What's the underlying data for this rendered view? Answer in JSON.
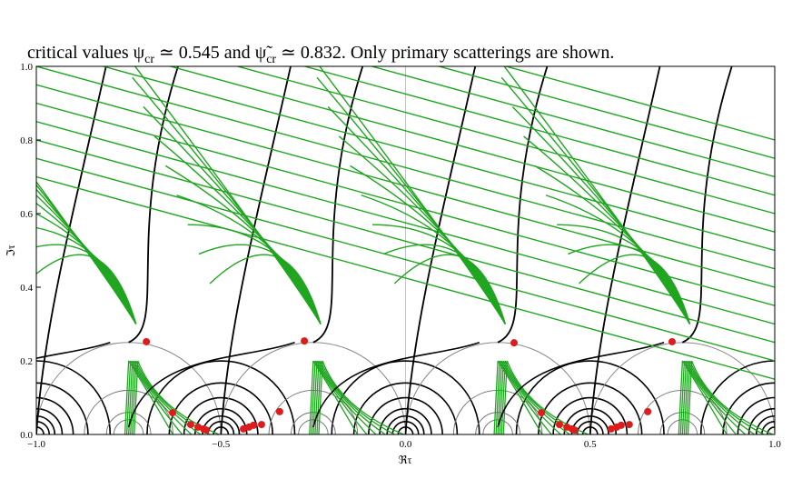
{
  "caption": {
    "parts": [
      "critical values ",
      "ψ",
      "cr",
      " ≃ 0.545 and ",
      "ψ̃",
      "cr",
      " ≃ 0.832. Only primary scatterings are shown."
    ]
  },
  "chart_data": {
    "type": "scatter",
    "xlabel": "ℜτ",
    "ylabel": "ℑτ",
    "color": "#dd1c1c",
    "x": [
      -0.702,
      -0.274,
      0.294,
      0.722,
      -0.631,
      -0.582,
      -0.562,
      -0.547,
      -0.54,
      -0.439,
      -0.424,
      -0.412,
      -0.39,
      -0.341,
      0.368,
      0.417,
      0.437,
      0.451,
      0.458,
      0.557,
      0.572,
      0.584,
      0.606,
      0.656
    ],
    "y": [
      0.252,
      0.254,
      0.249,
      0.252,
      0.059,
      0.027,
      0.02,
      0.015,
      0.012,
      0.015,
      0.02,
      0.025,
      0.027,
      0.062,
      0.059,
      0.027,
      0.02,
      0.015,
      0.012,
      0.015,
      0.02,
      0.025,
      0.027,
      0.062
    ],
    "xlim": [
      -1,
      1
    ],
    "ylim": [
      0,
      1
    ],
    "xticks": [
      {
        "value": -1,
        "label": "−1.0"
      },
      {
        "value": -0.5,
        "label": "−0.5"
      },
      {
        "value": 0,
        "label": "0.0"
      },
      0.5,
      {
        "value": 1,
        "label": "1.0"
      }
    ],
    "yticks": [
      {
        "value": 0,
        "label": "0.0"
      },
      0.2,
      0.4,
      0.6,
      0.8,
      {
        "value": 1,
        "label": "1.0"
      }
    ]
  }
}
